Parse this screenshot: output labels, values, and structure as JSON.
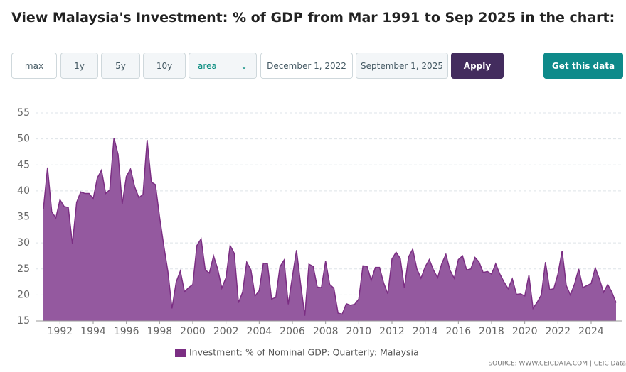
{
  "controls": {
    "ranges": [
      "max",
      "1y",
      "5y",
      "10y"
    ],
    "chart_type": "area",
    "start_date": "December 1, 2022",
    "end_date": "September 1, 2025",
    "apply": "Apply",
    "get_data": "Get this data"
  },
  "source": "SOURCE: WWW.CEICDATA.COM | CEIC Data",
  "chart_data": {
    "type": "area",
    "title": "View Malaysia's Investment: % of GDP from Mar 1991 to Sep 2025 in the chart:",
    "x": [
      1991,
      1991.25,
      1991.5,
      1991.75,
      1992,
      1992.25,
      1992.5,
      1992.75,
      1993,
      1993.25,
      1993.5,
      1993.75,
      1994,
      1994.25,
      1994.5,
      1994.75,
      1995,
      1995.25,
      1995.5,
      1995.75,
      1996,
      1996.25,
      1996.5,
      1996.75,
      1997,
      1997.25,
      1997.5,
      1997.75,
      1998,
      1998.25,
      1998.5,
      1998.75,
      1999,
      1999.25,
      1999.5,
      1999.75,
      2000,
      2000.25,
      2000.5,
      2000.75,
      2001,
      2001.25,
      2001.5,
      2001.75,
      2002,
      2002.25,
      2002.5,
      2002.75,
      2003,
      2003.25,
      2003.5,
      2003.75,
      2004,
      2004.25,
      2004.5,
      2004.75,
      2005,
      2005.25,
      2005.5,
      2005.75,
      2006,
      2006.25,
      2006.5,
      2006.75,
      2007,
      2007.25,
      2007.5,
      2007.75,
      2008,
      2008.25,
      2008.5,
      2008.75,
      2009,
      2009.25,
      2009.5,
      2009.75,
      2010,
      2010.25,
      2010.5,
      2010.75,
      2011,
      2011.25,
      2011.5,
      2011.75,
      2012,
      2012.25,
      2012.5,
      2012.75,
      2013,
      2013.25,
      2013.5,
      2013.75,
      2014,
      2014.25,
      2014.5,
      2014.75,
      2015,
      2015.25,
      2015.5,
      2015.75,
      2016,
      2016.25,
      2016.5,
      2016.75,
      2017,
      2017.25,
      2017.5,
      2017.75,
      2018,
      2018.25,
      2018.5,
      2018.75,
      2019,
      2019.25,
      2019.5,
      2019.75,
      2020,
      2020.25,
      2020.5,
      2020.75,
      2021,
      2021.25,
      2021.5,
      2021.75,
      2022,
      2022.25,
      2022.5,
      2022.75,
      2023,
      2023.25,
      2023.5,
      2023.75,
      2024,
      2024.25,
      2024.5,
      2024.75,
      2025,
      2025.25,
      2025.5
    ],
    "series": [
      {
        "name": "Investment: % of Nominal GDP: Quarterly: Malaysia",
        "color": "#7b2e83",
        "fill": "#94599f",
        "values": [
          36.5,
          44.5,
          36,
          34.8,
          38.3,
          37,
          36.8,
          29.8,
          37.8,
          39.8,
          39.5,
          39.5,
          38.5,
          42.5,
          44,
          39.5,
          40.2,
          50.2,
          47,
          37.5,
          42.8,
          44.2,
          40.8,
          38.7,
          39.3,
          49.8,
          41.7,
          41.2,
          35,
          29.5,
          24.5,
          17.4,
          22.5,
          24.6,
          20.6,
          21.4,
          22,
          29.5,
          30.8,
          24.8,
          24.2,
          27.5,
          25,
          21.3,
          23.3,
          29.5,
          28,
          18.5,
          20.5,
          26.3,
          24.8,
          19.8,
          20.8,
          26.1,
          26,
          19.2,
          19.5,
          25.4,
          26.7,
          18.2,
          23.5,
          28.6,
          22,
          16,
          25.9,
          25.5,
          21.5,
          21.4,
          26.5,
          22,
          21.3,
          16.5,
          16.3,
          18.3,
          18,
          18.2,
          19.2,
          25.6,
          25.5,
          22.8,
          25.3,
          25.3,
          22.3,
          20.2,
          26.9,
          28.2,
          27,
          21.3,
          27.3,
          28.8,
          25,
          23.2,
          25.4,
          26.8,
          24.8,
          23.3,
          26,
          27.8,
          24.7,
          23.2,
          26.8,
          27.5,
          24.8,
          25,
          27.2,
          26.3,
          24.3,
          24.5,
          24,
          26,
          24,
          22.5,
          21.2,
          23.1,
          20.1,
          20.2,
          19.8,
          23.8,
          17.4,
          18.6,
          20,
          26.3,
          21,
          21.2,
          24,
          28.5,
          21.8,
          20,
          22.1,
          25,
          21.4,
          21.8,
          22.2,
          25.2,
          23,
          20.5,
          22,
          20.5,
          18.5
        ]
      }
    ],
    "xlim": [
      1991,
      2025.5
    ],
    "xticks": [
      1992,
      1994,
      1996,
      1998,
      2000,
      2002,
      2004,
      2006,
      2008,
      2010,
      2012,
      2014,
      2016,
      2018,
      2020,
      2022,
      2024
    ],
    "ylim": [
      15,
      55
    ],
    "yticks": [
      15,
      20,
      25,
      30,
      35,
      40,
      45,
      50,
      55
    ],
    "grid": true,
    "legend": "bottom"
  }
}
